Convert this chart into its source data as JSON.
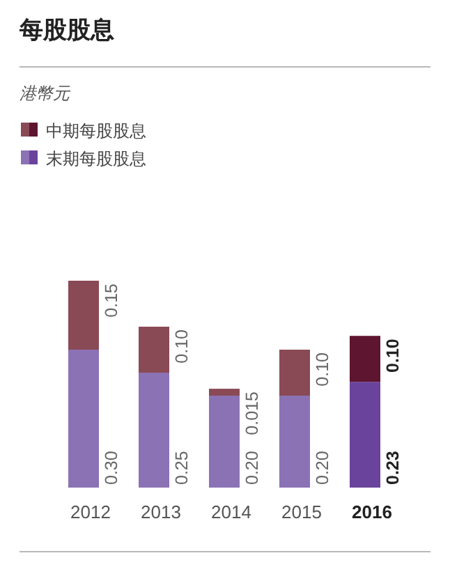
{
  "chart_data": {
    "type": "bar",
    "title": "每股股息",
    "subtitle": "港幣元",
    "stacked": true,
    "data_labels": true,
    "legend": "top left",
    "categories": [
      "2012",
      "2013",
      "2014",
      "2015",
      "2016"
    ],
    "series": [
      {
        "name": "末期每股股息",
        "color": "#8b72b5",
        "colors": [
          "#8b72b5",
          "#8b72b5",
          "#8b72b5",
          "#8b72b5",
          "#6a449c"
        ],
        "values": [
          0.3,
          0.25,
          0.2,
          0.2,
          0.23
        ],
        "value_labels": [
          "0.30",
          "0.25",
          "0.20",
          "0.20",
          "0.23"
        ]
      },
      {
        "name": "中期每股股息",
        "color": "#8a4a55",
        "colors": [
          "#8a4a55",
          "#8a4a55",
          "#8a4a55",
          "#8a4a55",
          "#5e1530"
        ],
        "values": [
          0.15,
          0.1,
          0.015,
          0.1,
          0.1
        ],
        "value_labels": [
          "0.15",
          "0.10",
          "0.015",
          "0.10",
          "0.10"
        ]
      }
    ]
  }
}
